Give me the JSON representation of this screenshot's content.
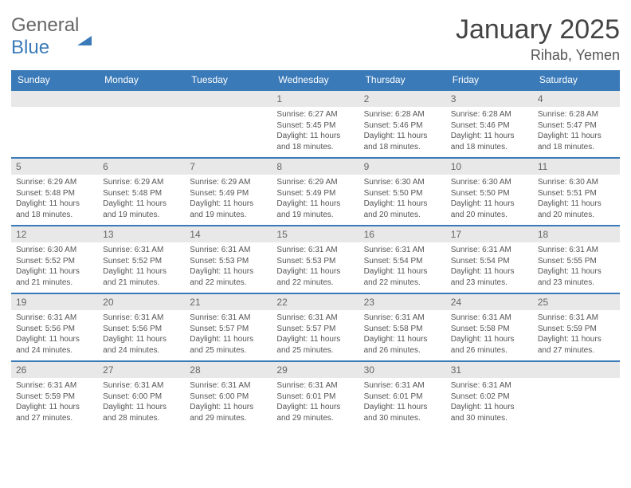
{
  "logo": {
    "word1": "General",
    "word2": "Blue"
  },
  "title": "January 2025",
  "location": "Rihab, Yemen",
  "dayHeaders": [
    "Sunday",
    "Monday",
    "Tuesday",
    "Wednesday",
    "Thursday",
    "Friday",
    "Saturday"
  ],
  "colors": {
    "brand": "#3a7ab8",
    "headerText": "#ffffff",
    "dayNumBg": "#e8e8e8",
    "bodyBg": "#ffffff",
    "text": "#555555"
  },
  "weeks": [
    [
      {
        "n": "",
        "l": [
          "",
          "",
          "",
          ""
        ]
      },
      {
        "n": "",
        "l": [
          "",
          "",
          "",
          ""
        ]
      },
      {
        "n": "",
        "l": [
          "",
          "",
          "",
          ""
        ]
      },
      {
        "n": "1",
        "l": [
          "Sunrise: 6:27 AM",
          "Sunset: 5:45 PM",
          "Daylight: 11 hours",
          "and 18 minutes."
        ]
      },
      {
        "n": "2",
        "l": [
          "Sunrise: 6:28 AM",
          "Sunset: 5:46 PM",
          "Daylight: 11 hours",
          "and 18 minutes."
        ]
      },
      {
        "n": "3",
        "l": [
          "Sunrise: 6:28 AM",
          "Sunset: 5:46 PM",
          "Daylight: 11 hours",
          "and 18 minutes."
        ]
      },
      {
        "n": "4",
        "l": [
          "Sunrise: 6:28 AM",
          "Sunset: 5:47 PM",
          "Daylight: 11 hours",
          "and 18 minutes."
        ]
      }
    ],
    [
      {
        "n": "5",
        "l": [
          "Sunrise: 6:29 AM",
          "Sunset: 5:48 PM",
          "Daylight: 11 hours",
          "and 18 minutes."
        ]
      },
      {
        "n": "6",
        "l": [
          "Sunrise: 6:29 AM",
          "Sunset: 5:48 PM",
          "Daylight: 11 hours",
          "and 19 minutes."
        ]
      },
      {
        "n": "7",
        "l": [
          "Sunrise: 6:29 AM",
          "Sunset: 5:49 PM",
          "Daylight: 11 hours",
          "and 19 minutes."
        ]
      },
      {
        "n": "8",
        "l": [
          "Sunrise: 6:29 AM",
          "Sunset: 5:49 PM",
          "Daylight: 11 hours",
          "and 19 minutes."
        ]
      },
      {
        "n": "9",
        "l": [
          "Sunrise: 6:30 AM",
          "Sunset: 5:50 PM",
          "Daylight: 11 hours",
          "and 20 minutes."
        ]
      },
      {
        "n": "10",
        "l": [
          "Sunrise: 6:30 AM",
          "Sunset: 5:50 PM",
          "Daylight: 11 hours",
          "and 20 minutes."
        ]
      },
      {
        "n": "11",
        "l": [
          "Sunrise: 6:30 AM",
          "Sunset: 5:51 PM",
          "Daylight: 11 hours",
          "and 20 minutes."
        ]
      }
    ],
    [
      {
        "n": "12",
        "l": [
          "Sunrise: 6:30 AM",
          "Sunset: 5:52 PM",
          "Daylight: 11 hours",
          "and 21 minutes."
        ]
      },
      {
        "n": "13",
        "l": [
          "Sunrise: 6:31 AM",
          "Sunset: 5:52 PM",
          "Daylight: 11 hours",
          "and 21 minutes."
        ]
      },
      {
        "n": "14",
        "l": [
          "Sunrise: 6:31 AM",
          "Sunset: 5:53 PM",
          "Daylight: 11 hours",
          "and 22 minutes."
        ]
      },
      {
        "n": "15",
        "l": [
          "Sunrise: 6:31 AM",
          "Sunset: 5:53 PM",
          "Daylight: 11 hours",
          "and 22 minutes."
        ]
      },
      {
        "n": "16",
        "l": [
          "Sunrise: 6:31 AM",
          "Sunset: 5:54 PM",
          "Daylight: 11 hours",
          "and 22 minutes."
        ]
      },
      {
        "n": "17",
        "l": [
          "Sunrise: 6:31 AM",
          "Sunset: 5:54 PM",
          "Daylight: 11 hours",
          "and 23 minutes."
        ]
      },
      {
        "n": "18",
        "l": [
          "Sunrise: 6:31 AM",
          "Sunset: 5:55 PM",
          "Daylight: 11 hours",
          "and 23 minutes."
        ]
      }
    ],
    [
      {
        "n": "19",
        "l": [
          "Sunrise: 6:31 AM",
          "Sunset: 5:56 PM",
          "Daylight: 11 hours",
          "and 24 minutes."
        ]
      },
      {
        "n": "20",
        "l": [
          "Sunrise: 6:31 AM",
          "Sunset: 5:56 PM",
          "Daylight: 11 hours",
          "and 24 minutes."
        ]
      },
      {
        "n": "21",
        "l": [
          "Sunrise: 6:31 AM",
          "Sunset: 5:57 PM",
          "Daylight: 11 hours",
          "and 25 minutes."
        ]
      },
      {
        "n": "22",
        "l": [
          "Sunrise: 6:31 AM",
          "Sunset: 5:57 PM",
          "Daylight: 11 hours",
          "and 25 minutes."
        ]
      },
      {
        "n": "23",
        "l": [
          "Sunrise: 6:31 AM",
          "Sunset: 5:58 PM",
          "Daylight: 11 hours",
          "and 26 minutes."
        ]
      },
      {
        "n": "24",
        "l": [
          "Sunrise: 6:31 AM",
          "Sunset: 5:58 PM",
          "Daylight: 11 hours",
          "and 26 minutes."
        ]
      },
      {
        "n": "25",
        "l": [
          "Sunrise: 6:31 AM",
          "Sunset: 5:59 PM",
          "Daylight: 11 hours",
          "and 27 minutes."
        ]
      }
    ],
    [
      {
        "n": "26",
        "l": [
          "Sunrise: 6:31 AM",
          "Sunset: 5:59 PM",
          "Daylight: 11 hours",
          "and 27 minutes."
        ]
      },
      {
        "n": "27",
        "l": [
          "Sunrise: 6:31 AM",
          "Sunset: 6:00 PM",
          "Daylight: 11 hours",
          "and 28 minutes."
        ]
      },
      {
        "n": "28",
        "l": [
          "Sunrise: 6:31 AM",
          "Sunset: 6:00 PM",
          "Daylight: 11 hours",
          "and 29 minutes."
        ]
      },
      {
        "n": "29",
        "l": [
          "Sunrise: 6:31 AM",
          "Sunset: 6:01 PM",
          "Daylight: 11 hours",
          "and 29 minutes."
        ]
      },
      {
        "n": "30",
        "l": [
          "Sunrise: 6:31 AM",
          "Sunset: 6:01 PM",
          "Daylight: 11 hours",
          "and 30 minutes."
        ]
      },
      {
        "n": "31",
        "l": [
          "Sunrise: 6:31 AM",
          "Sunset: 6:02 PM",
          "Daylight: 11 hours",
          "and 30 minutes."
        ]
      },
      {
        "n": "",
        "l": [
          "",
          "",
          "",
          ""
        ]
      }
    ]
  ]
}
